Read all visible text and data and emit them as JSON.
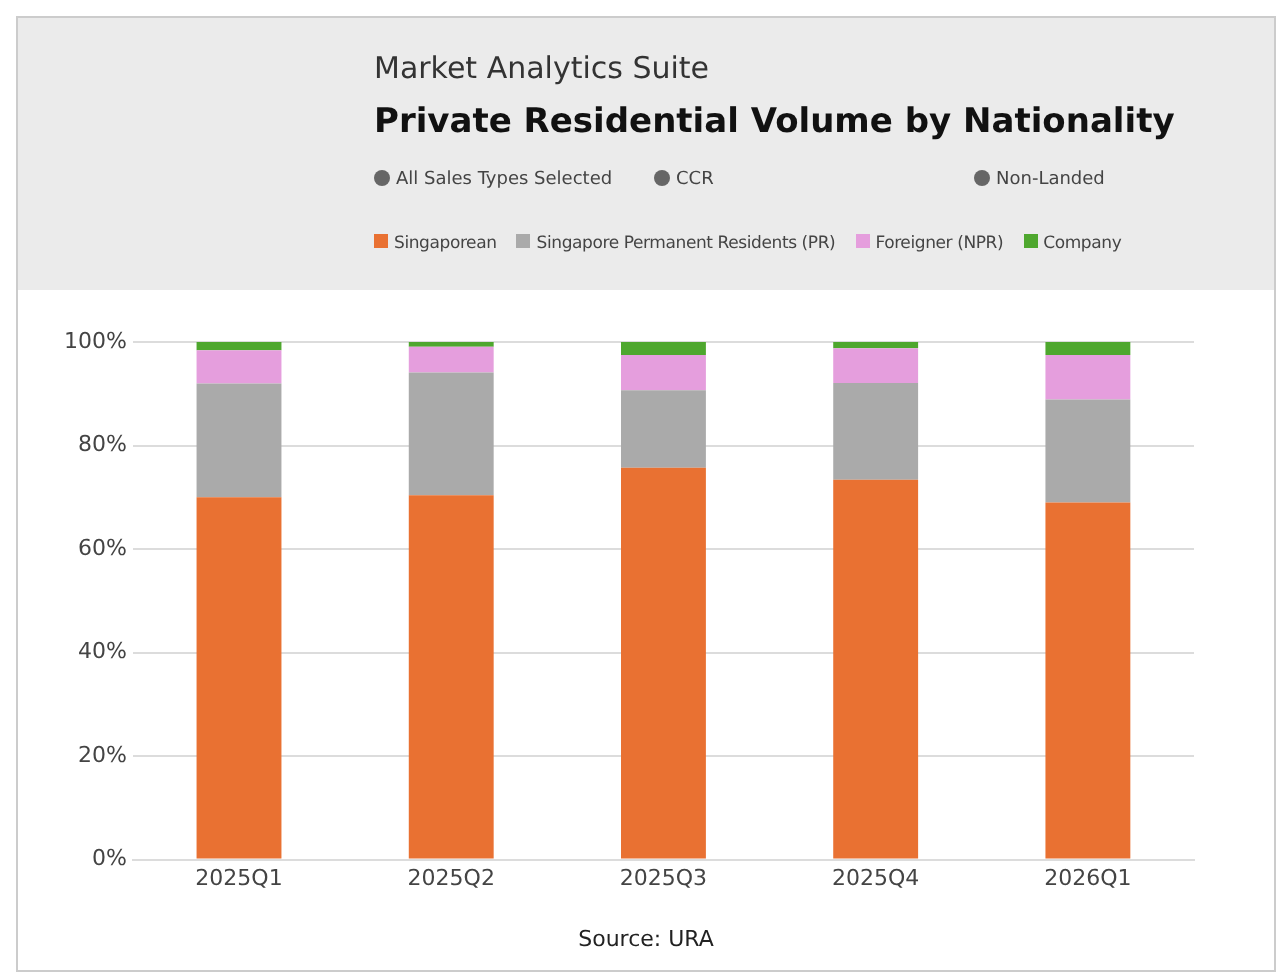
{
  "chart_data": {
    "type": "bar",
    "stacked": true,
    "subtitle": "Market Analytics Suite",
    "title": "Private Residential Volume by Nationality",
    "annotations": [
      "All Sales Types Selected",
      "CCR",
      "Non-Landed",
      "Source: URA"
    ],
    "categories": [
      "2025Q1",
      "2025Q2",
      "2025Q3",
      "2025Q4",
      "2026Q1"
    ],
    "series": [
      {
        "name": "Singaporean",
        "color": "#e97132",
        "values": [
          70,
          70.4,
          75.7,
          73.4,
          69
        ]
      },
      {
        "name": "Singapore Permanent Residents (PR)",
        "color": "#aaaaaa",
        "values": [
          22,
          23.7,
          15,
          18.7,
          19.9
        ]
      },
      {
        "name": "Foreigner (NPR)",
        "color": "#e59edd",
        "values": [
          6.4,
          5,
          6.8,
          6.7,
          8.6
        ]
      },
      {
        "name": "Company",
        "color": "#4ea72e",
        "values": [
          1.6,
          0.9,
          2.5,
          1.2,
          2.5
        ]
      }
    ],
    "ylim": [
      0,
      100
    ],
    "yticks": [
      {
        "value": 0,
        "label": "0%"
      },
      {
        "value": 20,
        "label": "20%"
      },
      {
        "value": 40,
        "label": "40%"
      },
      {
        "value": 60,
        "label": "60%"
      },
      {
        "value": 80,
        "label": "80%"
      },
      {
        "value": 100,
        "label": "100%"
      }
    ],
    "grid": "y",
    "legend": "top"
  }
}
